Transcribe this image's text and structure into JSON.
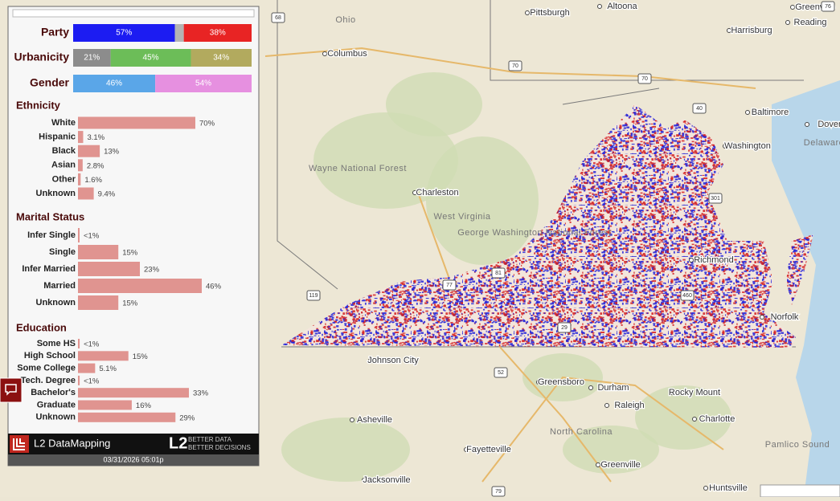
{
  "panel": {
    "stacked": [
      {
        "label": "Party",
        "segments": [
          {
            "value": 57,
            "label": "57%",
            "color": "#1c1cf2"
          },
          {
            "value": 5,
            "color": "#b4b4b4"
          },
          {
            "value": 38,
            "label": "38%",
            "color": "#e82424"
          }
        ]
      },
      {
        "label": "Urbanicity",
        "segments": [
          {
            "value": 21,
            "label": "21%",
            "color": "#8c8c8c"
          },
          {
            "value": 45,
            "label": "45%",
            "color": "#6cbd58"
          },
          {
            "value": 34,
            "label": "34%",
            "color": "#b2aa5e"
          }
        ]
      },
      {
        "label": "Gender",
        "segments": [
          {
            "value": 46,
            "label": "46%",
            "color": "#5aa6e8"
          },
          {
            "value": 54,
            "label": "54%",
            "color": "#e690e0"
          }
        ]
      }
    ],
    "sections": [
      {
        "title": "Ethnicity",
        "rows": [
          {
            "label": "White",
            "value": 70,
            "value_label": "70%"
          },
          {
            "label": "Hispanic",
            "value": 3.1,
            "value_label": "3.1%"
          },
          {
            "label": "Black",
            "value": 13,
            "value_label": "13%"
          },
          {
            "label": "Asian",
            "value": 2.8,
            "value_label": "2.8%"
          },
          {
            "label": "Other",
            "value": 1.6,
            "value_label": "1.6%"
          },
          {
            "label": "Unknown",
            "value": 9.4,
            "value_label": "9.4%"
          }
        ]
      },
      {
        "title": "Marital Status",
        "rows": [
          {
            "label": "Infer Single",
            "value": 0.5,
            "value_label": "<1%"
          },
          {
            "label": "Single",
            "value": 15,
            "value_label": "15%"
          },
          {
            "label": "Infer Married",
            "value": 23,
            "value_label": "23%"
          },
          {
            "label": "Married",
            "value": 46,
            "value_label": "46%"
          },
          {
            "label": "Unknown",
            "value": 15,
            "value_label": "15%"
          }
        ]
      },
      {
        "title": "Education",
        "rows": [
          {
            "label": "Some HS",
            "value": 0.5,
            "value_label": "<1%"
          },
          {
            "label": "High School",
            "value": 15,
            "value_label": "15%"
          },
          {
            "label": "Some College",
            "value": 5.1,
            "value_label": "5.1%"
          },
          {
            "label": "Tech. Degree",
            "value": 0.5,
            "value_label": "<1%"
          },
          {
            "label": "Bachelor's",
            "value": 33,
            "value_label": "33%"
          },
          {
            "label": "Graduate",
            "value": 16,
            "value_label": "16%"
          },
          {
            "label": "Unknown",
            "value": 29,
            "value_label": "29%"
          }
        ]
      }
    ],
    "bar_color": "#e09490"
  },
  "footer": {
    "brand": "L2 DataMapping",
    "logo": "L2",
    "tagline_1": "BETTER DATA",
    "tagline_2": "BETTER DECISIONS",
    "timestamp": "03/31/2026 05:01p"
  },
  "map": {
    "cities": [
      "Pittsburgh",
      "Altoona",
      "Harrisburg",
      "Reading",
      "Columbus",
      "Baltimore",
      "Washington",
      "Dover",
      "Charleston",
      "Richmond",
      "Norfolk",
      "Johnson City",
      "Greensboro",
      "Durham",
      "Raleigh",
      "Rocky Mount",
      "Greenville",
      "Asheville",
      "Charlotte",
      "Fayetteville",
      "Greenville",
      "Jacksonville",
      "Huntsville"
    ],
    "regions": [
      "Ohio",
      "Delaware",
      "West Virginia",
      "North Carolina",
      "Wayne National Forest",
      "George Washington National Forest",
      "Pamlico Sound"
    ],
    "shields": [
      "68",
      "76",
      "70",
      "70",
      "40",
      "77",
      "81",
      "29",
      "460",
      "301",
      "119",
      "52",
      "79"
    ]
  }
}
